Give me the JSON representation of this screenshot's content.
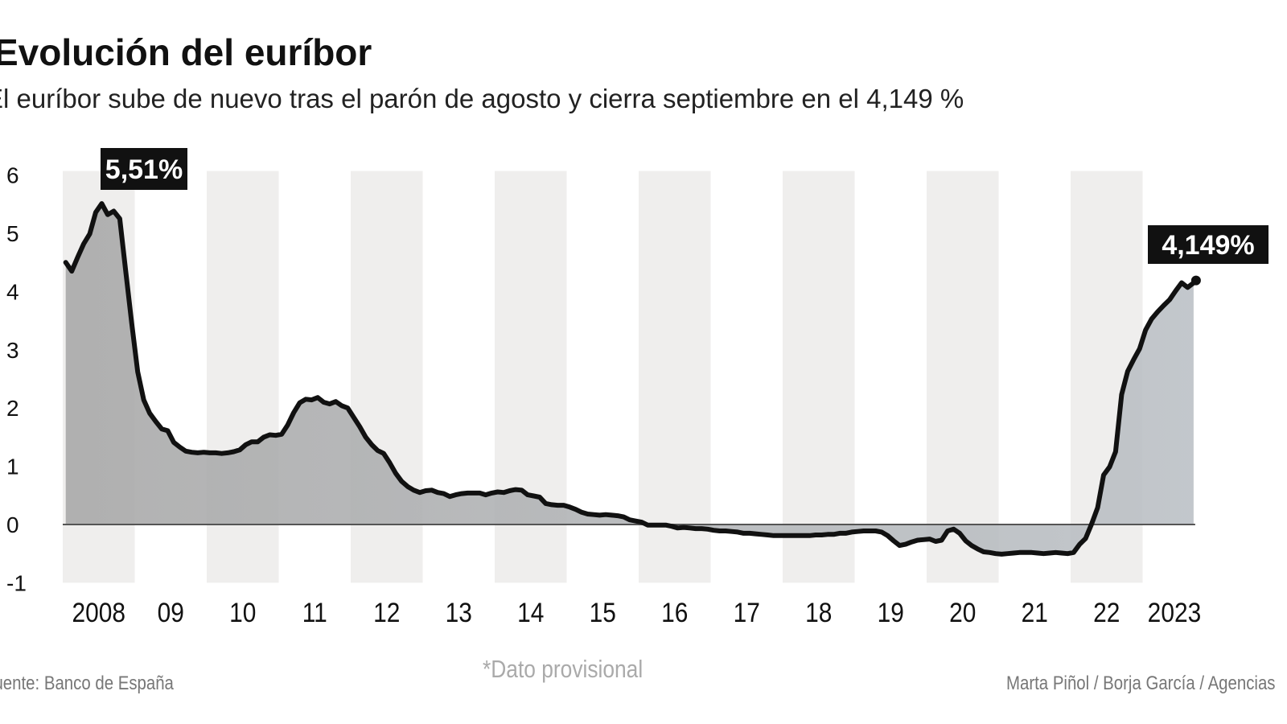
{
  "title": "Evolución del euríbor",
  "subtitle": "El euríbor sube de nuevo tras el parón de agosto y cierra septiembre en el 4,149 %",
  "source": "Fuente: Banco de España",
  "note": "*Dato provisional",
  "credits": "Marta Piñol / Borja García / Agencias",
  "colors": {
    "line": "#111111",
    "area": "#b3b6b9",
    "band": "#efeeed",
    "label_bg": "#111111"
  },
  "chart_data": {
    "type": "area",
    "title": "Evolución del euríbor",
    "xlabel": "",
    "ylabel": "",
    "ylim": [
      -1,
      6
    ],
    "yticks": [
      "6",
      "5",
      "4",
      "3",
      "2",
      "1",
      "0",
      "-1"
    ],
    "xticks": [
      "2008",
      "09",
      "10",
      "11",
      "12",
      "13",
      "14",
      "15",
      "16",
      "17",
      "18",
      "19",
      "20",
      "21",
      "22",
      "2023"
    ],
    "grid": "alternating vertical year bands",
    "start": "2008-01",
    "frequency": "monthly",
    "values": [
      4.5,
      4.35,
      4.59,
      4.82,
      4.99,
      5.36,
      5.51,
      5.32,
      5.38,
      5.25,
      4.35,
      3.45,
      2.62,
      2.14,
      1.91,
      1.77,
      1.64,
      1.61,
      1.41,
      1.33,
      1.26,
      1.24,
      1.23,
      1.24,
      1.23,
      1.23,
      1.22,
      1.23,
      1.25,
      1.28,
      1.37,
      1.42,
      1.42,
      1.5,
      1.54,
      1.53,
      1.55,
      1.71,
      1.92,
      2.09,
      2.15,
      2.14,
      2.18,
      2.1,
      2.07,
      2.11,
      2.04,
      2.0,
      1.84,
      1.68,
      1.5,
      1.37,
      1.27,
      1.22,
      1.06,
      0.88,
      0.74,
      0.65,
      0.59,
      0.55,
      0.58,
      0.59,
      0.55,
      0.53,
      0.48,
      0.51,
      0.53,
      0.54,
      0.54,
      0.54,
      0.51,
      0.54,
      0.56,
      0.55,
      0.58,
      0.6,
      0.59,
      0.51,
      0.49,
      0.47,
      0.36,
      0.34,
      0.33,
      0.33,
      0.3,
      0.26,
      0.21,
      0.18,
      0.17,
      0.16,
      0.17,
      0.16,
      0.15,
      0.13,
      0.08,
      0.06,
      0.04,
      -0.01,
      -0.01,
      -0.01,
      -0.01,
      -0.03,
      -0.06,
      -0.05,
      -0.06,
      -0.07,
      -0.07,
      -0.08,
      -0.1,
      -0.11,
      -0.11,
      -0.12,
      -0.13,
      -0.15,
      -0.15,
      -0.16,
      -0.17,
      -0.18,
      -0.19,
      -0.19,
      -0.19,
      -0.19,
      -0.19,
      -0.19,
      -0.19,
      -0.18,
      -0.18,
      -0.17,
      -0.17,
      -0.15,
      -0.15,
      -0.13,
      -0.12,
      -0.11,
      -0.11,
      -0.11,
      -0.13,
      -0.19,
      -0.28,
      -0.36,
      -0.34,
      -0.3,
      -0.27,
      -0.26,
      -0.25,
      -0.29,
      -0.27,
      -0.11,
      -0.08,
      -0.15,
      -0.28,
      -0.36,
      -0.42,
      -0.47,
      -0.48,
      -0.5,
      -0.51,
      -0.5,
      -0.49,
      -0.48,
      -0.48,
      -0.48,
      -0.49,
      -0.5,
      -0.49,
      -0.48,
      -0.49,
      -0.5,
      -0.48,
      -0.34,
      -0.24,
      0.01,
      0.29,
      0.85,
      0.99,
      1.25,
      2.23,
      2.63,
      2.83,
      3.02,
      3.34,
      3.53,
      3.65,
      3.76,
      3.86,
      4.01,
      4.15,
      4.07,
      4.149
    ],
    "annotations": [
      {
        "label": "5,51%",
        "date": "2008-07",
        "value": 5.51
      },
      {
        "label": "4,149%",
        "date": "2023-09",
        "value": 4.149
      }
    ]
  }
}
